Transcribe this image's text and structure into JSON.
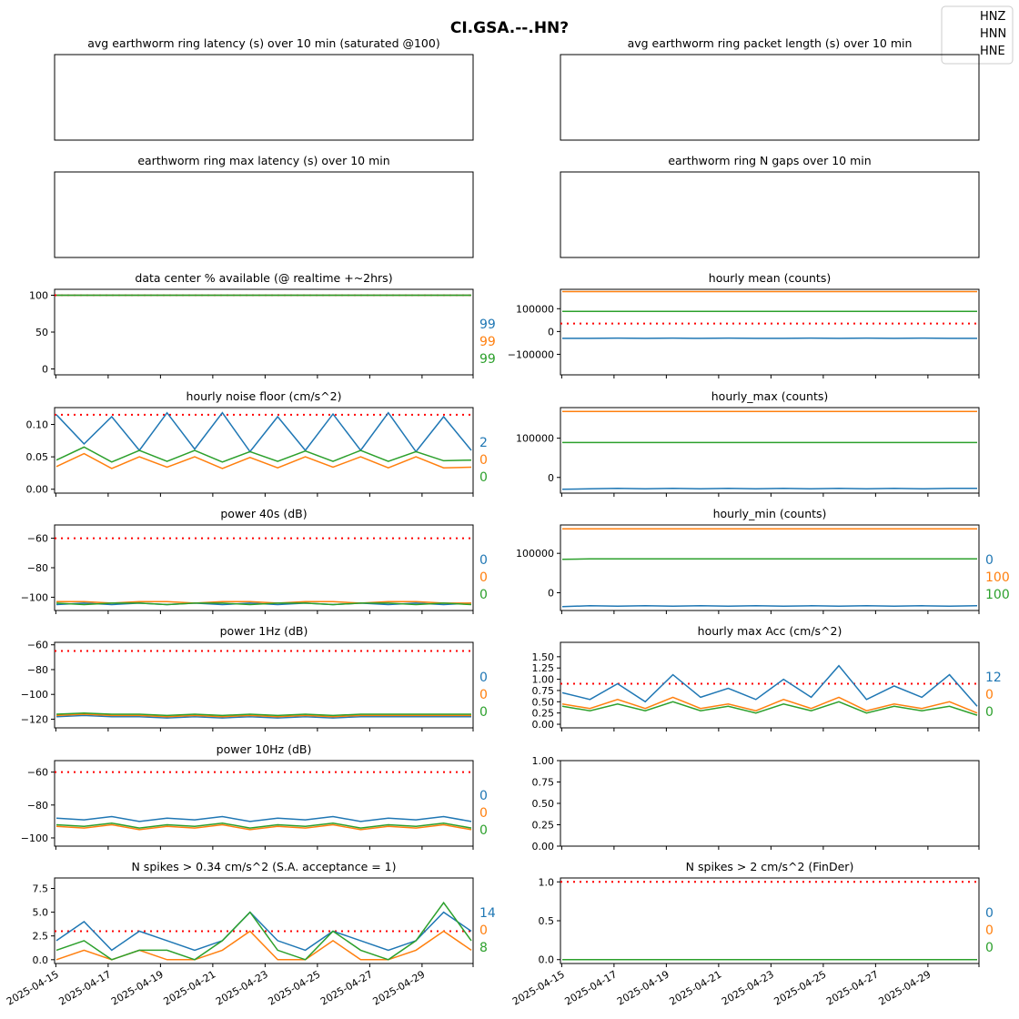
{
  "figure": {
    "title": "CI.GSA.--.HN?",
    "legend": {
      "placement": "top-right",
      "entries": [
        {
          "name": "HNZ",
          "color": "#1f77b4"
        },
        {
          "name": "HNN",
          "color": "#ff7f0e"
        },
        {
          "name": "HNE",
          "color": "#2ca02c"
        }
      ]
    },
    "x_tick_labels": [
      "2025-04-15",
      "2025-04-17",
      "2025-04-19",
      "2025-04-21",
      "2025-04-23",
      "2025-04-25",
      "2025-04-27",
      "2025-04-29"
    ],
    "x_range": [
      "2025-04-14",
      "2025-04-30"
    ],
    "colors": {
      "HNZ": "#1f77b4",
      "HNN": "#ff7f0e",
      "HNE": "#2ca02c",
      "threshold": "#ff0000"
    }
  },
  "chart_data": [
    {
      "id": "avg_latency",
      "type": "line",
      "title": "avg earthworm ring latency (s)   over 10 min (saturated @100)",
      "empty": true,
      "series": [],
      "annotations": []
    },
    {
      "id": "avg_packet",
      "type": "line",
      "title": "avg earthworm ring packet length (s)   over 10 min",
      "empty": true,
      "series": [],
      "annotations": []
    },
    {
      "id": "max_latency",
      "type": "line",
      "title": "earthworm ring max latency (s)   over 10 min",
      "empty": true,
      "series": [],
      "annotations": []
    },
    {
      "id": "n_gaps",
      "type": "line",
      "title": "earthworm ring N gaps   over 10 min",
      "empty": true,
      "series": [],
      "annotations": []
    },
    {
      "id": "pct_available",
      "type": "line",
      "title": "data center % available (@ realtime +~2hrs)",
      "ylim": [
        -8,
        108
      ],
      "yticks": [
        0,
        50,
        100
      ],
      "threshold": 100,
      "series": [
        {
          "name": "HNZ",
          "values": [
            100,
            100,
            100,
            100,
            100,
            100,
            100,
            100,
            100,
            100,
            100,
            100,
            100,
            100,
            100,
            100
          ]
        },
        {
          "name": "HNN",
          "values": [
            100,
            100,
            100,
            100,
            100,
            100,
            100,
            100,
            100,
            100,
            100,
            100,
            100,
            100,
            100,
            100
          ]
        },
        {
          "name": "HNE",
          "values": [
            100,
            100,
            100,
            100,
            100,
            100,
            100,
            100,
            100,
            100,
            100,
            100,
            100,
            100,
            100,
            100
          ]
        }
      ],
      "annotations": [
        "99",
        "99",
        "99"
      ]
    },
    {
      "id": "hourly_mean",
      "type": "line",
      "title": "hourly mean (counts)",
      "ylim": [
        -190000,
        185000
      ],
      "yticks": [
        -100000,
        0,
        100000
      ],
      "threshold": 35000,
      "series": [
        {
          "name": "HNZ",
          "values": [
            -30000,
            -30000,
            -29000,
            -30000,
            -29000,
            -30000,
            -29000,
            -30000,
            -30000,
            -29000,
            -30000,
            -29000,
            -30000,
            -29000,
            -30000,
            -30000
          ]
        },
        {
          "name": "HNN",
          "values": [
            175000,
            175000,
            175000,
            175000,
            175000,
            175000,
            175000,
            175000,
            175000,
            175000,
            175000,
            175000,
            175000,
            175000,
            175000,
            175000
          ]
        },
        {
          "name": "HNE",
          "values": [
            88000,
            88000,
            88000,
            88000,
            88000,
            88000,
            88000,
            88000,
            88000,
            88000,
            88000,
            88000,
            88000,
            88000,
            88000,
            88000
          ]
        }
      ],
      "annotations": []
    },
    {
      "id": "noise_floor",
      "type": "line",
      "title": "hourly noise floor (cm/s^2)",
      "ylim": [
        -0.006,
        0.126
      ],
      "yticks": [
        0.0,
        0.05,
        0.1
      ],
      "threshold": 0.115,
      "series": [
        {
          "name": "HNZ",
          "values": [
            0.115,
            0.07,
            0.112,
            0.06,
            0.118,
            0.062,
            0.118,
            0.058,
            0.112,
            0.06,
            0.116,
            0.06,
            0.118,
            0.058,
            0.112,
            0.06
          ]
        },
        {
          "name": "HNN",
          "values": [
            0.035,
            0.055,
            0.032,
            0.05,
            0.034,
            0.05,
            0.032,
            0.049,
            0.033,
            0.05,
            0.034,
            0.05,
            0.033,
            0.05,
            0.033,
            0.034
          ]
        },
        {
          "name": "HNE",
          "values": [
            0.045,
            0.065,
            0.042,
            0.06,
            0.043,
            0.06,
            0.042,
            0.058,
            0.043,
            0.059,
            0.043,
            0.06,
            0.043,
            0.058,
            0.044,
            0.045
          ]
        }
      ],
      "annotations": [
        "2",
        "0",
        "0"
      ]
    },
    {
      "id": "hourly_max",
      "type": "line",
      "title": "hourly_max (counts)",
      "ylim": [
        -40000,
        178000
      ],
      "yticks": [
        0,
        100000
      ],
      "series": [
        {
          "name": "HNZ",
          "values": [
            -30000,
            -29000,
            -28000,
            -29000,
            -28000,
            -29000,
            -28000,
            -29000,
            -28000,
            -29000,
            -28000,
            -29000,
            -28000,
            -29000,
            -28000,
            -28000
          ]
        },
        {
          "name": "HNN",
          "values": [
            168000,
            168000,
            168000,
            168000,
            168000,
            168000,
            168000,
            168000,
            168000,
            168000,
            168000,
            168000,
            168000,
            168000,
            168000,
            168000
          ]
        },
        {
          "name": "HNE",
          "values": [
            89000,
            89000,
            89000,
            89000,
            89000,
            89000,
            89000,
            89000,
            89000,
            89000,
            89000,
            89000,
            89000,
            89000,
            89000,
            89000
          ]
        }
      ],
      "annotations": []
    },
    {
      "id": "power_40s",
      "type": "line",
      "title": "power 40s (dB)",
      "ylim": [
        -109,
        -51
      ],
      "yticks": [
        -100,
        -80,
        -60
      ],
      "threshold": -60,
      "series": [
        {
          "name": "HNZ",
          "values": [
            -105,
            -104,
            -105,
            -104,
            -105,
            -104,
            -105,
            -104,
            -105,
            -104,
            -105,
            -104,
            -105,
            -104,
            -105,
            -104
          ]
        },
        {
          "name": "HNN",
          "values": [
            -103,
            -103,
            -104,
            -103,
            -103,
            -104,
            -103,
            -103,
            -104,
            -103,
            -103,
            -104,
            -103,
            -103,
            -104,
            -104
          ]
        },
        {
          "name": "HNE",
          "values": [
            -104,
            -105,
            -104,
            -104,
            -105,
            -104,
            -104,
            -105,
            -104,
            -104,
            -105,
            -104,
            -104,
            -105,
            -104,
            -105
          ]
        }
      ],
      "annotations": [
        "0",
        "0",
        "0"
      ]
    },
    {
      "id": "hourly_min",
      "type": "line",
      "title": "hourly_min (counts)",
      "ylim": [
        -45000,
        172000
      ],
      "yticks": [
        0,
        100000
      ],
      "series": [
        {
          "name": "HNZ",
          "values": [
            -35000,
            -33000,
            -34000,
            -33000,
            -34000,
            -33000,
            -34000,
            -33000,
            -34000,
            -33000,
            -34000,
            -33000,
            -34000,
            -33000,
            -34000,
            -33000
          ]
        },
        {
          "name": "HNN",
          "values": [
            162000,
            162000,
            162000,
            162000,
            162000,
            162000,
            162000,
            162000,
            162000,
            162000,
            162000,
            162000,
            162000,
            162000,
            162000,
            162000
          ]
        },
        {
          "name": "HNE",
          "values": [
            85000,
            86000,
            86000,
            86000,
            86000,
            86000,
            86000,
            86000,
            86000,
            86000,
            86000,
            86000,
            86000,
            86000,
            86000,
            86000
          ]
        }
      ],
      "annotations": [
        "0",
        "100",
        "100"
      ]
    },
    {
      "id": "power_1hz",
      "type": "line",
      "title": "power 1Hz (dB)",
      "ylim": [
        -127,
        -58
      ],
      "yticks": [
        -120,
        -100,
        -80,
        -60
      ],
      "threshold": -65,
      "series": [
        {
          "name": "HNZ",
          "values": [
            -118,
            -117,
            -118,
            -118,
            -119,
            -118,
            -119,
            -118,
            -119,
            -118,
            -119,
            -118,
            -118,
            -118,
            -118,
            -118
          ]
        },
        {
          "name": "HNN",
          "values": [
            -117,
            -116,
            -117,
            -117,
            -118,
            -117,
            -118,
            -117,
            -118,
            -117,
            -118,
            -117,
            -117,
            -117,
            -117,
            -117
          ]
        },
        {
          "name": "HNE",
          "values": [
            -116,
            -115,
            -116,
            -116,
            -117,
            -116,
            -117,
            -116,
            -117,
            -116,
            -117,
            -116,
            -116,
            -116,
            -116,
            -116
          ]
        }
      ],
      "annotations": [
        "0",
        "0",
        "0"
      ]
    },
    {
      "id": "max_acc",
      "type": "line",
      "title": "hourly max Acc (cm/s^2)",
      "ylim": [
        -0.08,
        1.82
      ],
      "yticks": [
        0.0,
        0.25,
        0.5,
        0.75,
        1.0,
        1.25,
        1.5
      ],
      "threshold": 0.9,
      "series": [
        {
          "name": "HNZ",
          "values": [
            0.7,
            0.55,
            0.9,
            0.5,
            1.1,
            0.6,
            0.8,
            0.55,
            1.0,
            0.6,
            1.3,
            0.55,
            0.85,
            0.6,
            1.1,
            0.4
          ]
        },
        {
          "name": "HNN",
          "values": [
            0.45,
            0.35,
            0.55,
            0.35,
            0.6,
            0.35,
            0.45,
            0.3,
            0.55,
            0.35,
            0.6,
            0.3,
            0.45,
            0.35,
            0.5,
            0.25
          ]
        },
        {
          "name": "HNE",
          "values": [
            0.4,
            0.3,
            0.45,
            0.3,
            0.5,
            0.3,
            0.4,
            0.25,
            0.45,
            0.3,
            0.5,
            0.25,
            0.4,
            0.3,
            0.4,
            0.2
          ]
        }
      ],
      "annotations": [
        "12",
        "0",
        "0"
      ]
    },
    {
      "id": "power_10hz",
      "type": "line",
      "title": "power 10Hz (dB)",
      "ylim": [
        -105,
        -53
      ],
      "yticks": [
        -100,
        -80,
        -60
      ],
      "threshold": -60,
      "series": [
        {
          "name": "HNZ",
          "values": [
            -88,
            -89,
            -87,
            -90,
            -88,
            -89,
            -87,
            -90,
            -88,
            -89,
            -87,
            -90,
            -88,
            -89,
            -87,
            -90
          ]
        },
        {
          "name": "HNN",
          "values": [
            -93,
            -94,
            -92,
            -95,
            -93,
            -94,
            -92,
            -95,
            -93,
            -94,
            -92,
            -95,
            -93,
            -94,
            -92,
            -95
          ]
        },
        {
          "name": "HNE",
          "values": [
            -92,
            -93,
            -91,
            -94,
            -92,
            -93,
            -91,
            -94,
            -92,
            -93,
            -91,
            -94,
            -92,
            -93,
            -91,
            -94
          ]
        }
      ],
      "annotations": [
        "0",
        "0",
        "0"
      ]
    },
    {
      "id": "empty_unit",
      "type": "line",
      "title": "",
      "empty": true,
      "ylim": [
        0,
        1
      ],
      "yticks": [
        0.0,
        0.25,
        0.5,
        0.75,
        1.0
      ],
      "show_yticks": true,
      "series": [],
      "annotations": []
    },
    {
      "id": "spikes_034",
      "type": "line",
      "title": "N spikes > 0.34 cm/s^2 (S.A. acceptance = 1)",
      "ylim": [
        -0.4,
        8.6
      ],
      "yticks": [
        0.0,
        2.5,
        5.0,
        7.5
      ],
      "threshold": 3,
      "series": [
        {
          "name": "HNZ",
          "values": [
            2,
            4,
            1,
            3,
            2,
            1,
            2,
            5,
            2,
            1,
            3,
            2,
            1,
            2,
            5,
            3
          ]
        },
        {
          "name": "HNN",
          "values": [
            0,
            1,
            0,
            1,
            0,
            0,
            1,
            3,
            0,
            0,
            2,
            0,
            0,
            1,
            3,
            1
          ]
        },
        {
          "name": "HNE",
          "values": [
            1,
            2,
            0,
            1,
            1,
            0,
            2,
            5,
            1,
            0,
            3,
            1,
            0,
            2,
            6,
            2
          ]
        }
      ],
      "annotations": [
        "14",
        "0",
        "8"
      ]
    },
    {
      "id": "spikes_2",
      "type": "line",
      "title": "N spikes > 2 cm/s^2 (FinDer)",
      "ylim": [
        -0.05,
        1.05
      ],
      "yticks": [
        0.0,
        0.5,
        1.0
      ],
      "threshold": 1,
      "series": [
        {
          "name": "HNZ",
          "values": [
            0,
            0,
            0,
            0,
            0,
            0,
            0,
            0,
            0,
            0,
            0,
            0,
            0,
            0,
            0,
            0
          ]
        },
        {
          "name": "HNN",
          "values": [
            0,
            0,
            0,
            0,
            0,
            0,
            0,
            0,
            0,
            0,
            0,
            0,
            0,
            0,
            0,
            0
          ]
        },
        {
          "name": "HNE",
          "values": [
            0,
            0,
            0,
            0,
            0,
            0,
            0,
            0,
            0,
            0,
            0,
            0,
            0,
            0,
            0,
            0
          ]
        }
      ],
      "annotations": [
        "0",
        "0",
        "0"
      ]
    }
  ]
}
